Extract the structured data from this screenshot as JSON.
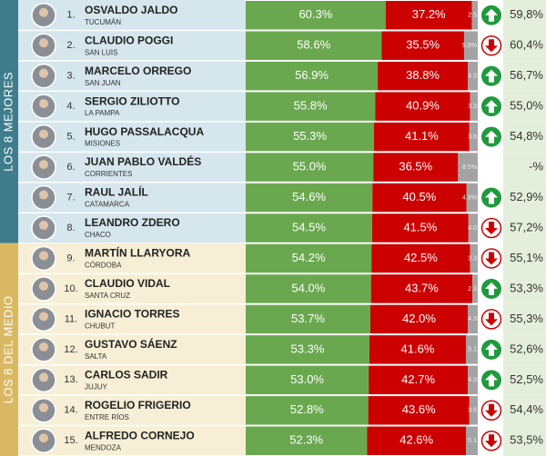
{
  "groups": [
    {
      "label": "LOS 8 MEJORES",
      "rows": [
        {
          "rank": "1.",
          "name": "OSVALDO JALDO",
          "province": "TUCUMÁN",
          "approve": 60.3,
          "approve_label": "60.3%",
          "disapprove": 37.2,
          "disapprove_label": "37.2%",
          "unknown": 2.5,
          "unknown_label": "2.5",
          "trend": "up",
          "previous": "59,8%"
        },
        {
          "rank": "2.",
          "name": "CLAUDIO POGGI",
          "province": "SAN LUIS",
          "approve": 58.6,
          "approve_label": "58.6%",
          "disapprove": 35.5,
          "disapprove_label": "35.5%",
          "unknown": 5.9,
          "unknown_label": "5.9%",
          "trend": "down",
          "previous": "60,4%"
        },
        {
          "rank": "3.",
          "name": "MARCELO ORREGO",
          "province": "SAN JUAN",
          "approve": 56.9,
          "approve_label": "56.9%",
          "disapprove": 38.8,
          "disapprove_label": "38.8%",
          "unknown": 4.3,
          "unknown_label": "4.3",
          "trend": "up",
          "previous": "56,7%"
        },
        {
          "rank": "4.",
          "name": "SERGIO ZILIOTTO",
          "province": "LA PAMPA",
          "approve": 55.8,
          "approve_label": "55.8%",
          "disapprove": 40.9,
          "disapprove_label": "40.9%",
          "unknown": 3.3,
          "unknown_label": "3.3",
          "trend": "up",
          "previous": "55,0%"
        },
        {
          "rank": "5.",
          "name": "HUGO PASSALACQUA",
          "province": "MISIONES",
          "approve": 55.3,
          "approve_label": "55.3%",
          "disapprove": 41.1,
          "disapprove_label": "41.1%",
          "unknown": 3.6,
          "unknown_label": "3.6",
          "trend": "up",
          "previous": "54,8%"
        },
        {
          "rank": "6.",
          "name": "JUAN PABLO VALDÉS",
          "province": "CORRIENTES",
          "approve": 55.0,
          "approve_label": "55.0%",
          "disapprove": 36.5,
          "disapprove_label": "36.5%",
          "unknown": 8.5,
          "unknown_label": "8.5%",
          "trend": null,
          "previous": "-%"
        },
        {
          "rank": "7.",
          "name": "RAUL JALÍL",
          "province": "CATAMARCA",
          "approve": 54.6,
          "approve_label": "54.6%",
          "disapprove": 40.5,
          "disapprove_label": "40.5%",
          "unknown": 4.9,
          "unknown_label": "4.9%",
          "trend": "up",
          "previous": "52,9%"
        },
        {
          "rank": "8.",
          "name": "LEANDRO ZDERO",
          "province": "CHACO",
          "approve": 54.5,
          "approve_label": "54.5%",
          "disapprove": 41.5,
          "disapprove_label": "41.5%",
          "unknown": 4.0,
          "unknown_label": "4.0",
          "trend": "down",
          "previous": "57,2%"
        }
      ]
    },
    {
      "label": "LOS 8 DEL MEDIO",
      "rows": [
        {
          "rank": "9.",
          "name": "MARTÍN LLARYORA",
          "province": "CÓRDOBA",
          "approve": 54.2,
          "approve_label": "54.2%",
          "disapprove": 42.5,
          "disapprove_label": "42.5%",
          "unknown": 3.3,
          "unknown_label": "3.3",
          "trend": "down",
          "previous": "55,1%"
        },
        {
          "rank": "10.",
          "name": "CLAUDIO VIDAL",
          "province": "SANTA CRUZ",
          "approve": 54.0,
          "approve_label": "54.0%",
          "disapprove": 43.7,
          "disapprove_label": "43.7%",
          "unknown": 2.3,
          "unknown_label": "2.3",
          "trend": "up",
          "previous": "53,3%"
        },
        {
          "rank": "11.",
          "name": "IGNACIO TORRES",
          "province": "CHUBUT",
          "approve": 53.7,
          "approve_label": "53.7%",
          "disapprove": 42.0,
          "disapprove_label": "42.0%",
          "unknown": 4.3,
          "unknown_label": "4.3",
          "trend": "down",
          "previous": "55,3%"
        },
        {
          "rank": "12.",
          "name": "GUSTAVO SÁENZ",
          "province": "SALTA",
          "approve": 53.3,
          "approve_label": "53.3%",
          "disapprove": 41.6,
          "disapprove_label": "41.6%",
          "unknown": 5.1,
          "unknown_label": "5.1",
          "trend": "up",
          "previous": "52,6%"
        },
        {
          "rank": "13.",
          "name": "CARLOS SADIR",
          "province": "JUJUY",
          "approve": 53.0,
          "approve_label": "53.0%",
          "disapprove": 42.7,
          "disapprove_label": "42.7%",
          "unknown": 4.3,
          "unknown_label": "4.3",
          "trend": "up",
          "previous": "52,5%"
        },
        {
          "rank": "14.",
          "name": "ROGELIO FRIGERIO",
          "province": "ENTRE RÍOS",
          "approve": 52.8,
          "approve_label": "52.8%",
          "disapprove": 43.6,
          "disapprove_label": "43.6%",
          "unknown": 3.6,
          "unknown_label": "3.6",
          "trend": "down",
          "previous": "54,4%"
        },
        {
          "rank": "15.",
          "name": "ALFREDO CORNEJO",
          "province": "MENDOZA",
          "approve": 52.3,
          "approve_label": "52.3%",
          "disapprove": 42.6,
          "disapprove_label": "42.6%",
          "unknown": 5.1,
          "unknown_label": "5.1",
          "trend": "down",
          "previous": "53,5%"
        }
      ]
    }
  ]
}
